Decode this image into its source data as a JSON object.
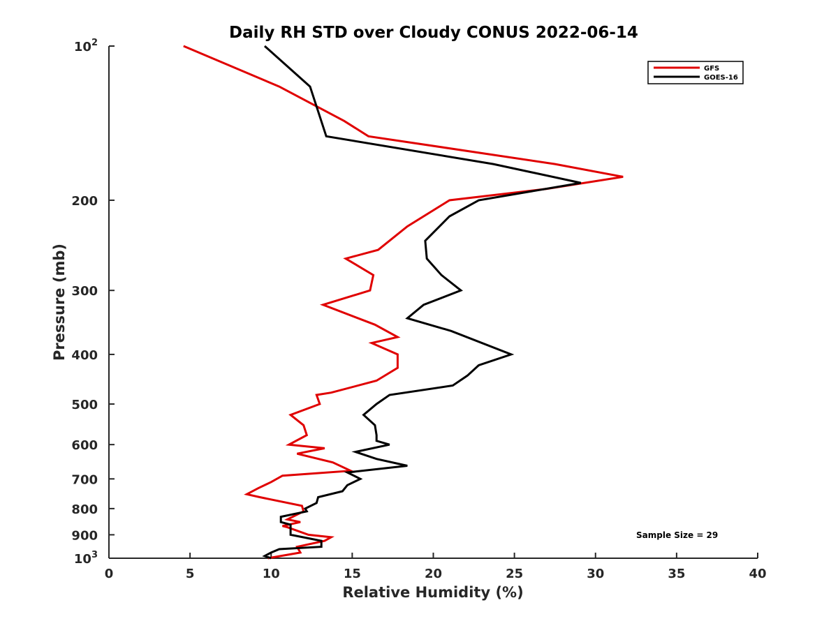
{
  "chart_data": {
    "type": "line",
    "title": "Daily RH STD over Cloudy CONUS 2022-06-14",
    "xlabel": "Relative Humidity (%)",
    "ylabel": "Pressure (mb)",
    "xlim": [
      0,
      40
    ],
    "ylim": [
      100,
      1000
    ],
    "y_scale": "log",
    "y_reversed": true,
    "grid": false,
    "legend_position": "top-right",
    "x_ticks": [
      0,
      5,
      10,
      15,
      20,
      25,
      30,
      35,
      40
    ],
    "x_tick_labels": [
      "0",
      "5",
      "10",
      "15",
      "20",
      "25",
      "30",
      "35",
      "40"
    ],
    "y_ticks": [
      {
        "value": 100,
        "label": "10",
        "sup": "2"
      },
      {
        "value": 200,
        "label": "200",
        "sup": ""
      },
      {
        "value": 300,
        "label": "300",
        "sup": ""
      },
      {
        "value": 400,
        "label": "400",
        "sup": ""
      },
      {
        "value": 500,
        "label": "500",
        "sup": ""
      },
      {
        "value": 600,
        "label": "600",
        "sup": ""
      },
      {
        "value": 700,
        "label": "700",
        "sup": ""
      },
      {
        "value": 800,
        "label": "800",
        "sup": ""
      },
      {
        "value": 900,
        "label": "900",
        "sup": ""
      },
      {
        "value": 1000,
        "label": "10",
        "sup": "3"
      }
    ],
    "series": [
      {
        "name": "GFS",
        "color": "#e00000",
        "points": [
          [
            4.6,
            100
          ],
          [
            10.5,
            120
          ],
          [
            14.5,
            140
          ],
          [
            16.0,
            150
          ],
          [
            27.5,
            170
          ],
          [
            31.7,
            180
          ],
          [
            27.0,
            190
          ],
          [
            21.0,
            200
          ],
          [
            18.4,
            225
          ],
          [
            16.6,
            250
          ],
          [
            14.6,
            260
          ],
          [
            16.3,
            280
          ],
          [
            16.1,
            300
          ],
          [
            13.2,
            320
          ],
          [
            16.4,
            350
          ],
          [
            17.8,
            370
          ],
          [
            16.2,
            380
          ],
          [
            17.8,
            400
          ],
          [
            17.8,
            425
          ],
          [
            16.5,
            450
          ],
          [
            13.7,
            475
          ],
          [
            12.8,
            480
          ],
          [
            13.0,
            500
          ],
          [
            11.2,
            525
          ],
          [
            12.0,
            550
          ],
          [
            12.2,
            575
          ],
          [
            11.1,
            600
          ],
          [
            13.3,
            610
          ],
          [
            11.6,
            625
          ],
          [
            13.8,
            650
          ],
          [
            14.9,
            675
          ],
          [
            10.7,
            690
          ],
          [
            10.0,
            710
          ],
          [
            9.2,
            730
          ],
          [
            8.5,
            750
          ],
          [
            9.3,
            760
          ],
          [
            11.9,
            790
          ],
          [
            12.0,
            810
          ],
          [
            11.0,
            840
          ],
          [
            11.8,
            850
          ],
          [
            10.7,
            865
          ],
          [
            11.0,
            870
          ],
          [
            12.3,
            900
          ],
          [
            13.7,
            910
          ],
          [
            13.3,
            925
          ],
          [
            11.6,
            950
          ],
          [
            11.8,
            975
          ],
          [
            9.8,
            1000
          ]
        ]
      },
      {
        "name": "GOES-16",
        "color": "#000000",
        "points": [
          [
            9.6,
            100
          ],
          [
            12.4,
            120
          ],
          [
            13.4,
            150
          ],
          [
            23.7,
            170
          ],
          [
            29.1,
            185
          ],
          [
            22.8,
            200
          ],
          [
            21.0,
            215
          ],
          [
            19.5,
            240
          ],
          [
            19.6,
            260
          ],
          [
            20.5,
            280
          ],
          [
            21.7,
            300
          ],
          [
            19.4,
            320
          ],
          [
            18.4,
            340
          ],
          [
            21.1,
            360
          ],
          [
            24.8,
            400
          ],
          [
            22.8,
            420
          ],
          [
            22.1,
            440
          ],
          [
            21.2,
            460
          ],
          [
            17.3,
            480
          ],
          [
            16.5,
            500
          ],
          [
            15.7,
            525
          ],
          [
            16.4,
            550
          ],
          [
            16.5,
            575
          ],
          [
            16.5,
            590
          ],
          [
            17.3,
            600
          ],
          [
            15.2,
            620
          ],
          [
            16.5,
            640
          ],
          [
            18.4,
            660
          ],
          [
            14.7,
            680
          ],
          [
            15.5,
            700
          ],
          [
            14.7,
            720
          ],
          [
            14.4,
            740
          ],
          [
            12.9,
            760
          ],
          [
            12.8,
            780
          ],
          [
            12.1,
            800
          ],
          [
            12.2,
            810
          ],
          [
            10.6,
            830
          ],
          [
            10.6,
            850
          ],
          [
            11.2,
            860
          ],
          [
            11.2,
            900
          ],
          [
            13.1,
            925
          ],
          [
            13.1,
            950
          ],
          [
            10.5,
            960
          ],
          [
            10.0,
            975
          ],
          [
            9.6,
            990
          ],
          [
            10.0,
            1000
          ]
        ]
      }
    ],
    "annotations": [
      "Sample Size = 29"
    ]
  }
}
